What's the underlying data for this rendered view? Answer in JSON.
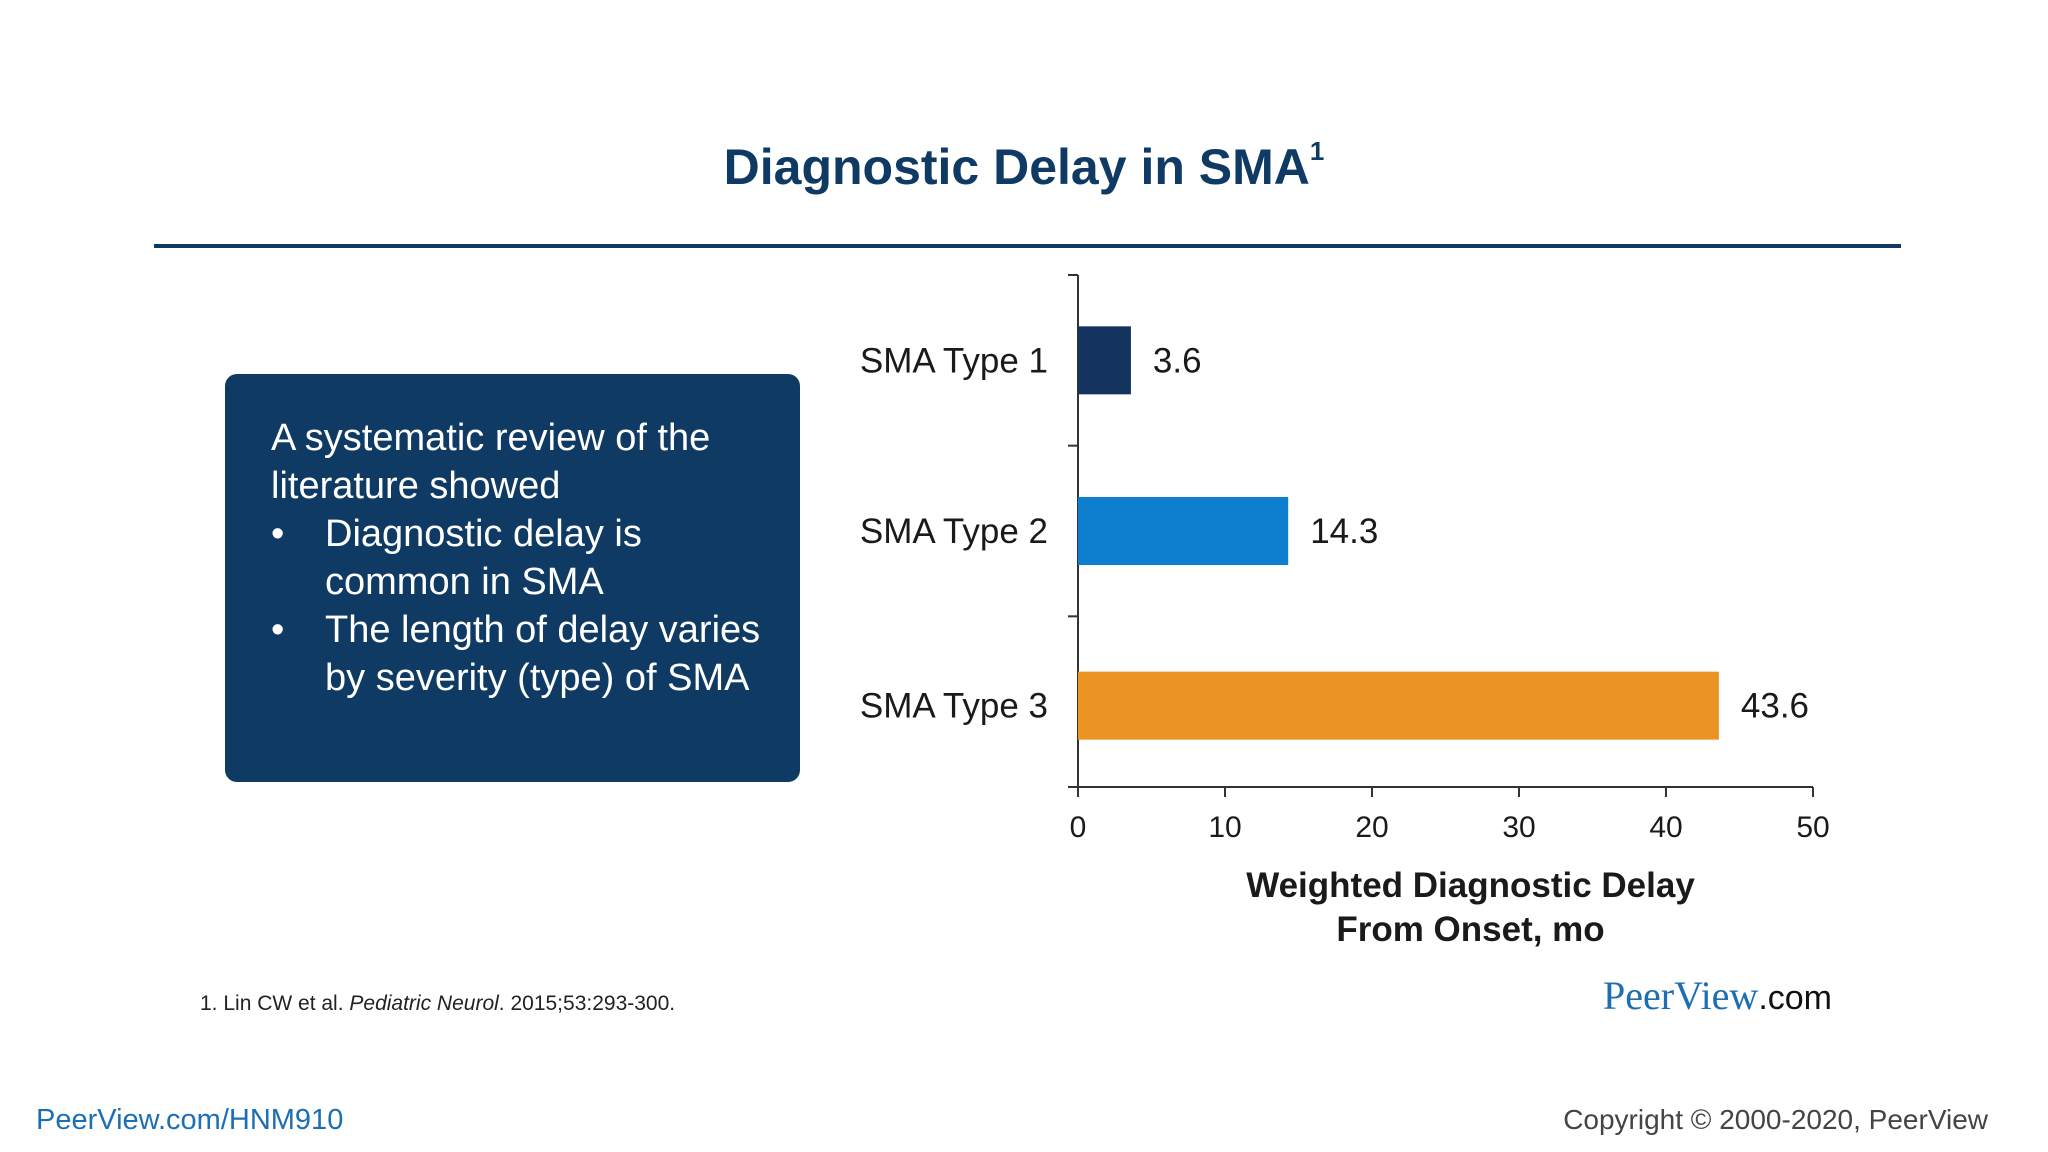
{
  "slide": {
    "title": "Diagnostic Delay in SMA",
    "title_superscript": "1"
  },
  "summary_box": {
    "intro": "A systematic review of the literature showed",
    "bullets": [
      "Diagnostic delay is common in SMA",
      "The length of delay varies by severity (type) of SMA"
    ],
    "bullet_glyph": "•"
  },
  "chart_data": {
    "type": "bar",
    "orientation": "horizontal",
    "categories": [
      "SMA Type 1",
      "SMA Type 2",
      "SMA Type 3"
    ],
    "values": [
      3.6,
      14.3,
      43.6
    ],
    "value_labels": [
      "3.6",
      "14.3",
      "43.6"
    ],
    "colors": [
      "#14345f",
      "#0e7fcf",
      "#ec9423"
    ],
    "xlabel_lines": [
      "Weighted Diagnostic Delay",
      "From Onset, mo"
    ],
    "xlim": [
      0,
      50
    ],
    "xticks": [
      0,
      10,
      20,
      30,
      40,
      50
    ],
    "grid": false,
    "legend": "none"
  },
  "footnote": {
    "prefix": "1. Lin CW et al. ",
    "journal": "Pediatric Neurol",
    "suffix": ". 2015;53:293-300."
  },
  "brand": {
    "peer": "Peer",
    "view": "View",
    "com": ".com"
  },
  "bottom_link": "PeerView.com/HNM910",
  "copyright": "Copyright © 2000-2020, PeerView",
  "colors": {
    "title": "#0f3a63",
    "box": "#0f3a63",
    "link": "#1d6fb3"
  }
}
